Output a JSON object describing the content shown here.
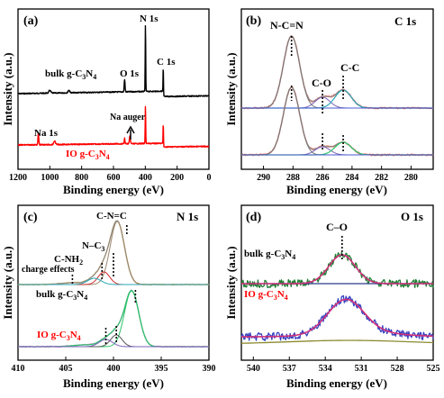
{
  "figure": {
    "panels": [
      {
        "label": "(a)",
        "xlabel": "Binding energy (eV)",
        "ylabel": "Intensity (a.u.)"
      },
      {
        "label": "(b)",
        "title": "C 1s",
        "xlabel": "Binding energy (eV)",
        "ylabel": "Intensity (a.u.)"
      },
      {
        "label": "(c)",
        "title": "N 1s",
        "xlabel": "Binding energy (eV)",
        "ylabel": "Intensity (a.u.)"
      },
      {
        "label": "(d)",
        "title": "O 1s",
        "xlabel": "Binding energy (eV)",
        "ylabel": "Intensity (a.u.)"
      }
    ]
  },
  "chart_data": [
    {
      "panel": "(a)",
      "type": "line",
      "xlabel": "Binding energy (eV)",
      "ylabel": "Intensity (a.u.)",
      "xlim": [
        1200,
        0
      ],
      "x_reversed": true,
      "xticks": [
        1200,
        1000,
        800,
        600,
        400,
        200,
        0
      ],
      "colors": {
        "bulk": "#000000",
        "io": "#ff0000"
      },
      "series": [
        {
          "name": "bulk g-C3N4",
          "label_main": "bulk g-C",
          "label_sub1": "3",
          "label_mid": "N",
          "label_sub2": "4",
          "peaks": [
            {
              "x": 530,
              "label": "O 1s"
            },
            {
              "x": 399,
              "label": "N 1s"
            },
            {
              "x": 287,
              "label": "C 1s"
            }
          ]
        },
        {
          "name": "IO g-C3N4",
          "label_main": "IO g-C",
          "label_sub1": "3",
          "label_mid": "N",
          "label_sub2": "4",
          "peaks": [
            {
              "x": 1072,
              "label": "Na 1s"
            },
            {
              "x": 497,
              "label": "Na auger"
            },
            {
              "x": 399,
              "label": "N 1s"
            },
            {
              "x": 287,
              "label": "C 1s"
            }
          ]
        }
      ],
      "annotations": [
        "N 1s",
        "O 1s",
        "C 1s",
        "Na 1s",
        "Na auger"
      ]
    },
    {
      "panel": "(b)",
      "type": "line",
      "title": "C 1s",
      "xlabel": "Binding energy (eV)",
      "ylabel": "Intensity (a.u.)",
      "xlim": [
        291.5,
        278.5
      ],
      "x_reversed": true,
      "xticks": [
        290,
        288,
        286,
        284,
        282,
        280
      ],
      "components": [
        {
          "label": "N-C=N",
          "x": 288.1
        },
        {
          "label": "C-O",
          "x": 286.0
        },
        {
          "label": "C-C",
          "x": 284.6
        }
      ]
    },
    {
      "panel": "(c)",
      "type": "line",
      "title": "N 1s",
      "xlabel": "Binding energy (eV)",
      "ylabel": "Intensity (a.u.)",
      "xlim": [
        410,
        390
      ],
      "x_reversed": true,
      "xticks": [
        410,
        405,
        400,
        395,
        390
      ],
      "components": [
        {
          "label": "C-N=C",
          "x": 398.6
        },
        {
          "label": "N-C3",
          "x": 400.0
        },
        {
          "label": "C-NH2",
          "x": 401.2
        },
        {
          "label": "charge effects",
          "x": 404.3
        }
      ],
      "series_labels": [
        {
          "name": "bulk g-C3N4",
          "main": "bulk g-C",
          "sub1": "3",
          "mid": "N",
          "sub2": "4"
        },
        {
          "name": "IO g-C3N4",
          "main": "IO g-C",
          "sub1": "3",
          "mid": "N",
          "sub2": "4"
        }
      ],
      "text": {
        "n_c3": "N–C",
        "n_c3_sub": "3",
        "c_nh2": "C-NH",
        "c_nh2_sub": "2"
      }
    },
    {
      "panel": "(d)",
      "type": "line",
      "title": "O 1s",
      "xlabel": "Binding energy (eV)",
      "ylabel": "Intensity (a.u.)",
      "xlim": [
        541,
        525
      ],
      "x_reversed": true,
      "xticks": [
        540,
        537,
        534,
        531,
        528,
        525
      ],
      "components": [
        {
          "label": "C–O",
          "x": 532.6
        }
      ],
      "series_labels": [
        {
          "name": "bulk g-C3N4",
          "main": "bulk g-C",
          "sub1": "3",
          "mid": "N",
          "sub2": "4"
        },
        {
          "name": "IO g-C3N4",
          "main": "IO g-C",
          "sub1": "3",
          "mid": "N",
          "sub2": "4"
        }
      ]
    }
  ]
}
